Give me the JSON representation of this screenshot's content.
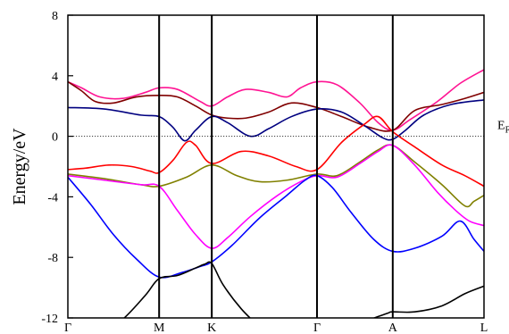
{
  "chart_data": {
    "type": "line",
    "ylabel": "Energy/eV",
    "ylim": [
      -12,
      8
    ],
    "y_ticks": [
      {
        "value": 8,
        "label": "8"
      },
      {
        "value": 4,
        "label": "4"
      },
      {
        "value": 0,
        "label": "0"
      },
      {
        "value": -4,
        "label": "-4"
      },
      {
        "value": -8,
        "label": "-8"
      },
      {
        "value": -12,
        "label": "-12"
      }
    ],
    "k_points": [
      {
        "label": "Γ",
        "x": 0
      },
      {
        "label": "M",
        "x": 1.0
      },
      {
        "label": "K",
        "x": 1.577
      },
      {
        "label": "Γ",
        "x": 2.73
      },
      {
        "label": "A",
        "x": 3.56
      },
      {
        "label": "L",
        "x": 4.56
      }
    ],
    "fermi": {
      "value": 0,
      "label": "E",
      "subscript": "F",
      "style": "dotted"
    },
    "grid": false,
    "series": [
      {
        "color": "#ff1493",
        "points": [
          [
            0,
            3.6
          ],
          [
            0.15,
            3.2
          ],
          [
            0.35,
            2.6
          ],
          [
            0.6,
            2.5
          ],
          [
            0.85,
            2.9
          ],
          [
            1.0,
            3.2
          ],
          [
            1.2,
            3.1
          ],
          [
            1.45,
            2.3
          ],
          [
            1.577,
            2.0
          ],
          [
            1.75,
            2.6
          ],
          [
            1.95,
            3.1
          ],
          [
            2.2,
            2.9
          ],
          [
            2.4,
            2.6
          ],
          [
            2.55,
            3.2
          ],
          [
            2.73,
            3.6
          ],
          [
            2.95,
            3.4
          ],
          [
            3.2,
            2.2
          ],
          [
            3.4,
            0.9
          ],
          [
            3.56,
            0.4
          ],
          [
            3.75,
            1.1
          ],
          [
            4.05,
            2.3
          ],
          [
            4.3,
            3.5
          ],
          [
            4.56,
            4.4
          ]
        ]
      },
      {
        "color": "#800000",
        "points": [
          [
            0,
            3.6
          ],
          [
            0.15,
            3.0
          ],
          [
            0.3,
            2.3
          ],
          [
            0.5,
            2.2
          ],
          [
            0.75,
            2.6
          ],
          [
            1.0,
            2.7
          ],
          [
            1.2,
            2.6
          ],
          [
            1.4,
            2.0
          ],
          [
            1.577,
            1.4
          ],
          [
            1.75,
            1.2
          ],
          [
            1.95,
            1.2
          ],
          [
            2.2,
            1.6
          ],
          [
            2.45,
            2.2
          ],
          [
            2.73,
            1.9
          ],
          [
            3.0,
            1.3
          ],
          [
            3.3,
            0.6
          ],
          [
            3.56,
            0.4
          ],
          [
            3.8,
            1.7
          ],
          [
            4.1,
            2.1
          ],
          [
            4.35,
            2.5
          ],
          [
            4.56,
            2.9
          ]
        ]
      },
      {
        "color": "#000080",
        "points": [
          [
            0,
            1.9
          ],
          [
            0.4,
            1.8
          ],
          [
            0.8,
            1.4
          ],
          [
            1.0,
            1.3
          ],
          [
            1.15,
            0.6
          ],
          [
            1.28,
            -0.3
          ],
          [
            1.4,
            0.4
          ],
          [
            1.577,
            1.3
          ],
          [
            1.75,
            0.9
          ],
          [
            2.0,
            0.0
          ],
          [
            2.2,
            0.5
          ],
          [
            2.45,
            1.3
          ],
          [
            2.73,
            1.8
          ],
          [
            3.0,
            1.6
          ],
          [
            3.25,
            0.7
          ],
          [
            3.45,
            -0.1
          ],
          [
            3.56,
            -0.2
          ],
          [
            3.7,
            0.4
          ],
          [
            3.9,
            1.4
          ],
          [
            4.2,
            2.1
          ],
          [
            4.56,
            2.4
          ]
        ]
      },
      {
        "color": "#ff0000",
        "points": [
          [
            0,
            -2.2
          ],
          [
            0.2,
            -2.1
          ],
          [
            0.45,
            -1.9
          ],
          [
            0.7,
            -2.0
          ],
          [
            0.9,
            -2.3
          ],
          [
            1.0,
            -2.4
          ],
          [
            1.15,
            -1.6
          ],
          [
            1.3,
            -0.4
          ],
          [
            1.4,
            -0.6
          ],
          [
            1.577,
            -1.8
          ],
          [
            1.9,
            -1.0
          ],
          [
            2.2,
            -1.3
          ],
          [
            2.5,
            -2.0
          ],
          [
            2.73,
            -2.2
          ],
          [
            3.0,
            -0.4
          ],
          [
            3.25,
            0.8
          ],
          [
            3.4,
            1.3
          ],
          [
            3.56,
            0.3
          ],
          [
            3.8,
            -0.7
          ],
          [
            4.1,
            -1.9
          ],
          [
            4.35,
            -2.6
          ],
          [
            4.56,
            -3.3
          ]
        ]
      },
      {
        "color": "#808000",
        "points": [
          [
            0,
            -2.5
          ],
          [
            0.4,
            -2.8
          ],
          [
            0.8,
            -3.2
          ],
          [
            1.0,
            -3.3
          ],
          [
            1.3,
            -2.7
          ],
          [
            1.577,
            -1.9
          ],
          [
            1.85,
            -2.6
          ],
          [
            2.1,
            -3.0
          ],
          [
            2.4,
            -2.9
          ],
          [
            2.73,
            -2.5
          ],
          [
            2.95,
            -2.6
          ],
          [
            3.2,
            -1.7
          ],
          [
            3.4,
            -0.9
          ],
          [
            3.56,
            -0.6
          ],
          [
            3.8,
            -1.7
          ],
          [
            4.1,
            -3.2
          ],
          [
            4.35,
            -4.6
          ],
          [
            4.45,
            -4.3
          ],
          [
            4.56,
            -3.9
          ]
        ]
      },
      {
        "color": "#ff00ff",
        "points": [
          [
            0,
            -2.6
          ],
          [
            0.4,
            -2.9
          ],
          [
            0.8,
            -3.2
          ],
          [
            1.0,
            -3.3
          ],
          [
            1.2,
            -4.9
          ],
          [
            1.4,
            -6.5
          ],
          [
            1.577,
            -7.4
          ],
          [
            1.75,
            -6.7
          ],
          [
            2.0,
            -5.3
          ],
          [
            2.3,
            -3.9
          ],
          [
            2.55,
            -3.0
          ],
          [
            2.73,
            -2.6
          ],
          [
            2.95,
            -2.7
          ],
          [
            3.2,
            -1.8
          ],
          [
            3.4,
            -1.0
          ],
          [
            3.56,
            -0.6
          ],
          [
            3.8,
            -1.9
          ],
          [
            4.05,
            -3.7
          ],
          [
            4.25,
            -4.9
          ],
          [
            4.4,
            -5.6
          ],
          [
            4.56,
            -5.9
          ]
        ]
      },
      {
        "color": "#0000ff",
        "points": [
          [
            0,
            -2.7
          ],
          [
            0.25,
            -4.5
          ],
          [
            0.5,
            -6.5
          ],
          [
            0.75,
            -8.1
          ],
          [
            1.0,
            -9.3
          ],
          [
            1.25,
            -9.0
          ],
          [
            1.45,
            -8.6
          ],
          [
            1.577,
            -8.3
          ],
          [
            1.8,
            -7.2
          ],
          [
            2.1,
            -5.4
          ],
          [
            2.4,
            -3.9
          ],
          [
            2.6,
            -2.9
          ],
          [
            2.73,
            -2.6
          ],
          [
            2.9,
            -3.4
          ],
          [
            3.1,
            -5.0
          ],
          [
            3.35,
            -6.8
          ],
          [
            3.56,
            -7.6
          ],
          [
            3.8,
            -7.4
          ],
          [
            4.1,
            -6.6
          ],
          [
            4.3,
            -5.6
          ],
          [
            4.45,
            -6.8
          ],
          [
            4.56,
            -7.6
          ]
        ]
      },
      {
        "color": "#000000",
        "points": [
          [
            0,
            -13.5
          ],
          [
            0.3,
            -13.4
          ],
          [
            0.6,
            -12.1
          ],
          [
            0.85,
            -10.5
          ],
          [
            1.0,
            -9.4
          ],
          [
            1.2,
            -9.2
          ],
          [
            1.4,
            -8.7
          ],
          [
            1.5,
            -8.45
          ],
          [
            1.577,
            -8.4
          ],
          [
            1.7,
            -9.8
          ],
          [
            1.9,
            -11.4
          ],
          [
            2.1,
            -12.6
          ],
          [
            2.3,
            -13.8
          ]
        ]
      },
      {
        "color": "#000000",
        "points": [
          [
            3.0,
            -13.5
          ],
          [
            3.25,
            -12.3
          ],
          [
            3.5,
            -11.7
          ],
          [
            3.56,
            -11.6
          ],
          [
            3.8,
            -11.6
          ],
          [
            4.1,
            -11.2
          ],
          [
            4.35,
            -10.4
          ],
          [
            4.56,
            -9.9
          ]
        ]
      }
    ]
  }
}
